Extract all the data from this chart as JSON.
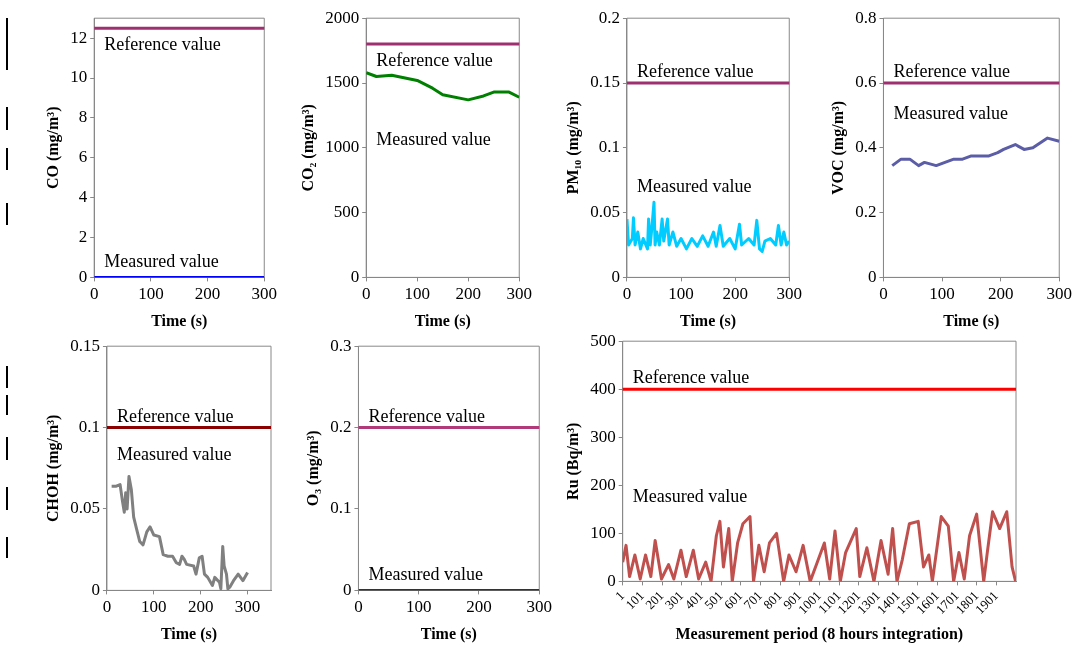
{
  "chart_data": [
    {
      "type": "line",
      "xlabel": "Time (s)",
      "ylabel": "CO (mg/m³)",
      "xlim": [
        0,
        300
      ],
      "xticks": [
        0,
        100,
        200,
        300
      ],
      "ylim": [
        0,
        13
      ],
      "yticks": [
        0,
        2,
        4,
        6,
        8,
        10,
        12
      ],
      "grid": false,
      "x": [
        0,
        100,
        200,
        300
      ],
      "series": [
        {
          "name": "Measured value",
          "color": "#0000ff",
          "values": [
            0,
            0,
            0,
            0
          ]
        }
      ],
      "ref_lines": [
        {
          "axis": "y",
          "value": 12.5,
          "label": "Reference value",
          "color": "#9e3070"
        }
      ]
    },
    {
      "type": "line",
      "xlabel": "Time (s)",
      "ylabel": "CO₂ (mg/m³)",
      "xlim": [
        0,
        300
      ],
      "xticks": [
        0,
        100,
        200,
        300
      ],
      "ylim": [
        0,
        2000
      ],
      "yticks": [
        0,
        500,
        1000,
        1500,
        2000
      ],
      "grid": false,
      "x": [
        0,
        20,
        50,
        100,
        130,
        150,
        200,
        230,
        250,
        280,
        300
      ],
      "series": [
        {
          "name": "Measured value",
          "color": "#008000",
          "values": [
            1580,
            1550,
            1560,
            1520,
            1460,
            1410,
            1370,
            1400,
            1430,
            1430,
            1390
          ]
        }
      ],
      "ref_lines": [
        {
          "axis": "y",
          "value": 1800,
          "label": "Reference value",
          "color": "#9e3070"
        }
      ]
    },
    {
      "type": "line",
      "xlabel": "Time (s)",
      "ylabel": "PM₁₀ (mg/m³)",
      "xlim": [
        0,
        300
      ],
      "xticks": [
        0,
        100,
        200,
        300
      ],
      "ylim": [
        0,
        0.2
      ],
      "yticks": [
        0,
        0.05,
        0.1,
        0.15,
        0.2
      ],
      "grid": false,
      "x": [
        0,
        3,
        10,
        12,
        15,
        20,
        25,
        30,
        38,
        40,
        43,
        46,
        50,
        52,
        55,
        60,
        65,
        68,
        75,
        78,
        85,
        92,
        100,
        110,
        120,
        130,
        140,
        150,
        160,
        165,
        172,
        178,
        190,
        200,
        208,
        212,
        225,
        235,
        240,
        245,
        250,
        255,
        265,
        275,
        280,
        285,
        290,
        295,
        300
      ],
      "series": [
        {
          "name": "Measured value",
          "color": "#00ccff",
          "values": [
            0.045,
            0.025,
            0.03,
            0.046,
            0.025,
            0.035,
            0.022,
            0.03,
            0.022,
            0.045,
            0.025,
            0.038,
            0.058,
            0.025,
            0.035,
            0.025,
            0.045,
            0.028,
            0.045,
            0.025,
            0.035,
            0.024,
            0.03,
            0.022,
            0.03,
            0.024,
            0.032,
            0.024,
            0.035,
            0.024,
            0.04,
            0.024,
            0.03,
            0.022,
            0.041,
            0.025,
            0.03,
            0.025,
            0.044,
            0.022,
            0.02,
            0.028,
            0.03,
            0.025,
            0.04,
            0.025,
            0.035,
            0.025,
            0.028
          ]
        }
      ],
      "ref_lines": [
        {
          "axis": "y",
          "value": 0.15,
          "label": "Reference value",
          "color": "#9e3070"
        }
      ]
    },
    {
      "type": "line",
      "xlabel": "Time (s)",
      "ylabel": "VOC (mg/m³)",
      "xlim": [
        0,
        300
      ],
      "xticks": [
        0,
        100,
        200,
        300
      ],
      "ylim": [
        0,
        0.8
      ],
      "yticks": [
        0,
        0.2,
        0.4,
        0.6,
        0.8
      ],
      "grid": false,
      "x": [
        15,
        30,
        45,
        60,
        70,
        90,
        120,
        135,
        150,
        180,
        195,
        205,
        225,
        240,
        255,
        280,
        300
      ],
      "series": [
        {
          "name": "Measured value",
          "color": "#5b5ea6",
          "values": [
            0.345,
            0.365,
            0.365,
            0.345,
            0.355,
            0.345,
            0.365,
            0.365,
            0.375,
            0.375,
            0.385,
            0.395,
            0.41,
            0.395,
            0.4,
            0.43,
            0.42
          ]
        }
      ],
      "ref_lines": [
        {
          "axis": "y",
          "value": 0.6,
          "label": "Reference value",
          "color": "#9e3070"
        }
      ]
    },
    {
      "type": "line",
      "xlabel": "Time (s)",
      "ylabel": "CHOH (mg/m³)",
      "xlim": [
        0,
        350
      ],
      "xticks": [
        0,
        100,
        200,
        300
      ],
      "ylim": [
        0,
        0.15
      ],
      "yticks": [
        0,
        0.05,
        0.1,
        0.15
      ],
      "grid": false,
      "x": [
        10,
        20,
        28,
        33,
        37,
        40,
        43,
        47,
        52,
        57,
        63,
        70,
        77,
        85,
        92,
        100,
        112,
        120,
        130,
        140,
        148,
        155,
        160,
        165,
        170,
        185,
        190,
        197,
        203,
        208,
        215,
        225,
        230,
        240,
        243,
        247,
        250,
        255,
        258,
        262,
        270,
        280,
        290,
        300
      ],
      "series": [
        {
          "name": "Measured value",
          "color": "#808080",
          "values": [
            0.064,
            0.064,
            0.065,
            0.055,
            0.048,
            0.06,
            0.05,
            0.07,
            0.062,
            0.045,
            0.038,
            0.03,
            0.028,
            0.036,
            0.039,
            0.034,
            0.033,
            0.022,
            0.021,
            0.021,
            0.017,
            0.016,
            0.021,
            0.019,
            0.016,
            0.015,
            0.01,
            0.02,
            0.021,
            0.01,
            0.008,
            0.003,
            0.008,
            0.005,
            0.001,
            0.027,
            0.015,
            0.01,
            0.001,
            0.002,
            0.006,
            0.01,
            0.006,
            0.011
          ]
        }
      ],
      "ref_lines": [
        {
          "axis": "y",
          "value": 0.1,
          "label": "Reference value",
          "color": "#8b0000"
        }
      ]
    },
    {
      "type": "line",
      "xlabel": "Time (s)",
      "ylabel": "O₃ (mg/m³)",
      "xlim": [
        0,
        300
      ],
      "xticks": [
        0,
        100,
        200,
        300
      ],
      "ylim": [
        0,
        0.3
      ],
      "yticks": [
        0,
        0.1,
        0.2,
        0.3
      ],
      "grid": false,
      "x": [
        0,
        100,
        200,
        300
      ],
      "series": [
        {
          "name": "Measured value",
          "color": "#333333",
          "values": [
            0,
            0,
            0,
            0
          ]
        }
      ],
      "ref_lines": [
        {
          "axis": "y",
          "value": 0.2,
          "label": "Reference value",
          "color": "#b03a7a"
        }
      ]
    },
    {
      "type": "line",
      "xlabel": "Measurement period (8 hours integration)",
      "ylabel": "Ru (Bq/m³)",
      "xlim": [
        1,
        2000
      ],
      "xticks": [
        1,
        101,
        201,
        301,
        401,
        501,
        601,
        701,
        801,
        901,
        1001,
        1101,
        1201,
        1301,
        1401,
        1501,
        1601,
        1701,
        1801,
        1901
      ],
      "ylim": [
        0,
        500
      ],
      "yticks": [
        0,
        100,
        200,
        300,
        400,
        500
      ],
      "grid": false,
      "x": [
        1,
        18,
        36,
        63,
        90,
        117,
        144,
        166,
        198,
        234,
        261,
        297,
        324,
        360,
        387,
        423,
        450,
        477,
        495,
        513,
        540,
        558,
        585,
        612,
        648,
        666,
        693,
        720,
        747,
        783,
        819,
        846,
        882,
        918,
        954,
        990,
        1026,
        1053,
        1080,
        1107,
        1134,
        1188,
        1206,
        1242,
        1278,
        1314,
        1350,
        1373,
        1395,
        1422,
        1458,
        1503,
        1530,
        1557,
        1575,
        1620,
        1656,
        1683,
        1710,
        1737,
        1764,
        1800,
        1836,
        1854,
        1881,
        1917,
        1953,
        1980,
        1998
      ],
      "series": [
        {
          "name": "Measured value",
          "color": "#c0504d",
          "values": [
            40,
            75,
            10,
            55,
            5,
            55,
            10,
            85,
            5,
            35,
            5,
            65,
            10,
            65,
            5,
            40,
            0,
            95,
            125,
            30,
            110,
            0,
            80,
            120,
            135,
            0,
            75,
            20,
            80,
            100,
            0,
            55,
            20,
            75,
            0,
            40,
            80,
            5,
            105,
            0,
            60,
            110,
            10,
            70,
            0,
            85,
            15,
            110,
            0,
            45,
            120,
            125,
            30,
            55,
            0,
            135,
            115,
            0,
            60,
            5,
            95,
            140,
            0,
            60,
            145,
            110,
            145,
            30,
            0
          ]
        }
      ],
      "ref_lines": [
        {
          "axis": "y",
          "value": 400,
          "label": "Reference value",
          "color": "#ff0000"
        }
      ]
    }
  ]
}
